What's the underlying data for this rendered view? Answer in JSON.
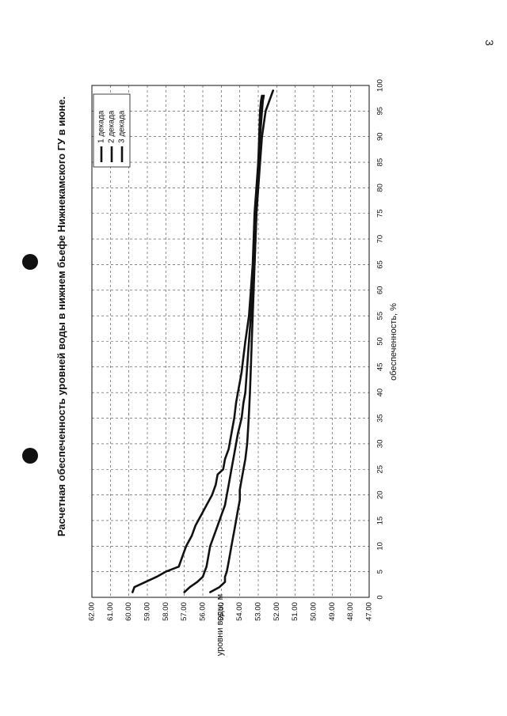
{
  "page": {
    "number": "3"
  },
  "chart_data": {
    "type": "line",
    "title": "Расчетная обеспеченность уровней воды в нижнем бьефе Нижнекамского ГУ в июне.",
    "xlabel": "обеспеченность, %",
    "ylabel": "уровни воды, м",
    "xlim": [
      0,
      100
    ],
    "ylim": [
      47.0,
      62.0
    ],
    "x_ticks": [
      "0",
      "5",
      "10",
      "15",
      "20",
      "25",
      "30",
      "35",
      "40",
      "45",
      "50",
      "55",
      "60",
      "65",
      "70",
      "75",
      "80",
      "85",
      "90",
      "95",
      "100"
    ],
    "y_ticks": [
      "47.00",
      "48.00",
      "49.00",
      "50.00",
      "51.00",
      "52.00",
      "53.00",
      "54.00",
      "55.00",
      "56.00",
      "57.00",
      "58.00",
      "59.00",
      "60.00",
      "61.00",
      "62.00"
    ],
    "grid": true,
    "legend_position": "top-right",
    "series": [
      {
        "name": "1 декада",
        "color": "#111111",
        "x": [
          1,
          2,
          3,
          4,
          5,
          6,
          7,
          8,
          10,
          12,
          14,
          16,
          18,
          20,
          22,
          24,
          25,
          27,
          29,
          31,
          33,
          35,
          38,
          40,
          42,
          44,
          47,
          50,
          55,
          60,
          65,
          70,
          75,
          80,
          85,
          90,
          95,
          97,
          98
        ],
        "y": [
          59.8,
          59.7,
          59.1,
          58.5,
          58.0,
          57.3,
          57.2,
          57.1,
          56.9,
          56.6,
          56.4,
          56.1,
          55.8,
          55.5,
          55.3,
          55.2,
          54.9,
          54.8,
          54.6,
          54.5,
          54.4,
          54.3,
          54.2,
          54.1,
          54.0,
          53.9,
          53.8,
          53.7,
          53.5,
          53.4,
          53.3,
          53.25,
          53.2,
          53.1,
          53.0,
          52.9,
          52.8,
          52.75,
          52.7
        ]
      },
      {
        "name": "2 декада",
        "color": "#111111",
        "x": [
          1,
          2,
          3,
          4,
          5,
          6,
          8,
          10,
          12,
          14,
          16,
          18,
          20,
          22,
          24,
          26,
          28,
          30,
          32,
          35,
          38,
          40,
          45,
          50,
          55,
          60,
          65,
          70,
          75,
          80,
          85,
          90,
          95,
          97,
          99
        ],
        "y": [
          57.0,
          56.7,
          56.3,
          56.0,
          55.9,
          55.8,
          55.7,
          55.6,
          55.4,
          55.2,
          55.0,
          54.8,
          54.7,
          54.6,
          54.5,
          54.4,
          54.3,
          54.2,
          54.1,
          53.9,
          53.8,
          53.7,
          53.6,
          53.5,
          53.4,
          53.3,
          53.2,
          53.15,
          53.1,
          53.0,
          52.9,
          52.8,
          52.6,
          52.4,
          52.2
        ]
      },
      {
        "name": "3 декада",
        "color": "#111111",
        "x": [
          1,
          2,
          3,
          4,
          5,
          7,
          9,
          11,
          13,
          15,
          17,
          19,
          21,
          23,
          25,
          27,
          30,
          33,
          36,
          40,
          45,
          50,
          55,
          60,
          65,
          70,
          75,
          80,
          85,
          90,
          95,
          97,
          98
        ],
        "y": [
          55.6,
          55.1,
          54.8,
          54.8,
          54.7,
          54.6,
          54.5,
          54.4,
          54.3,
          54.2,
          54.1,
          54.0,
          54.0,
          53.9,
          53.8,
          53.7,
          53.6,
          53.55,
          53.5,
          53.45,
          53.4,
          53.35,
          53.3,
          53.25,
          53.2,
          53.15,
          53.1,
          53.05,
          53.0,
          52.95,
          52.9,
          52.85,
          52.8
        ]
      }
    ]
  }
}
